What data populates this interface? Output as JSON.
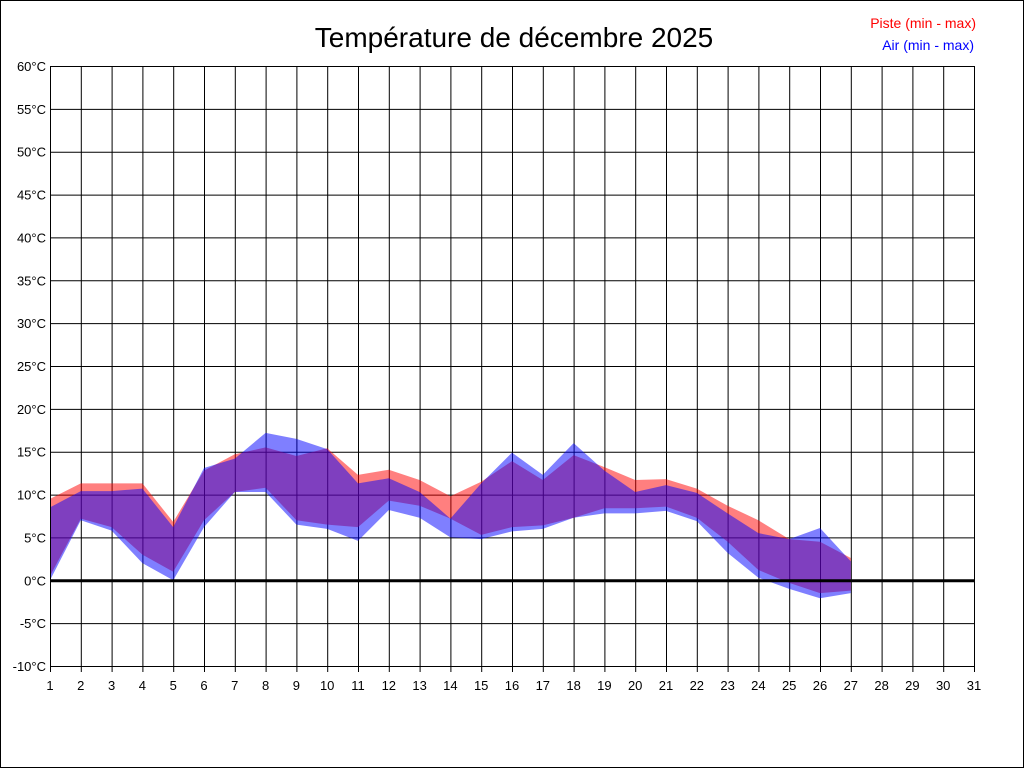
{
  "chart_data": {
    "type": "area",
    "title": "Température de décembre 2025",
    "xlabel": "",
    "ylabel": "",
    "xlim": [
      1,
      31
    ],
    "ylim": [
      -10,
      60
    ],
    "y_tick_step": 5,
    "y_unit": "°C",
    "grid": true,
    "legend_position": "top-right",
    "x": [
      1,
      2,
      3,
      4,
      5,
      6,
      7,
      8,
      9,
      10,
      11,
      12,
      13,
      14,
      15,
      16,
      17,
      18,
      19,
      20,
      21,
      22,
      23,
      24,
      25,
      26,
      27
    ],
    "x_ticks": [
      1,
      2,
      3,
      4,
      5,
      6,
      7,
      8,
      9,
      10,
      11,
      12,
      13,
      14,
      15,
      16,
      17,
      18,
      19,
      20,
      21,
      22,
      23,
      24,
      25,
      26,
      27,
      28,
      29,
      30,
      31
    ],
    "series": [
      {
        "name": "Piste (min - max)",
        "color": "#ff0000",
        "max": [
          9.5,
          11.3,
          11.3,
          11.3,
          6.8,
          12.8,
          14.7,
          15.5,
          14.5,
          15.4,
          12.3,
          12.9,
          11.7,
          9.8,
          11.5,
          13.9,
          11.7,
          14.6,
          13.2,
          11.7,
          11.8,
          10.7,
          8.7,
          7.0,
          4.8,
          4.5,
          2.6
        ],
        "min": [
          0.5,
          7.2,
          6.2,
          3.0,
          1.0,
          7.0,
          10.3,
          10.8,
          7.0,
          6.5,
          6.2,
          9.3,
          8.7,
          7.2,
          5.3,
          6.2,
          6.4,
          7.3,
          8.4,
          8.4,
          8.6,
          7.3,
          4.5,
          1.2,
          -0.3,
          -1.5,
          -1.2
        ]
      },
      {
        "name": "Air (min - max)",
        "color": "#0000ff",
        "max": [
          8.5,
          10.4,
          10.4,
          10.7,
          6.2,
          13.1,
          14.2,
          17.2,
          16.5,
          15.3,
          11.3,
          11.9,
          10.3,
          7.2,
          11.3,
          14.9,
          12.3,
          16.0,
          12.8,
          10.3,
          11.1,
          10.2,
          7.8,
          5.5,
          4.8,
          6.1,
          2.2
        ],
        "min": [
          0.0,
          7.0,
          5.8,
          2.0,
          0.0,
          6.2,
          10.3,
          10.3,
          6.5,
          6.0,
          4.6,
          8.2,
          7.3,
          5.0,
          4.8,
          5.7,
          6.0,
          7.3,
          7.8,
          7.8,
          8.1,
          6.9,
          3.2,
          0.3,
          -1.0,
          -2.1,
          -1.5
        ]
      }
    ]
  }
}
